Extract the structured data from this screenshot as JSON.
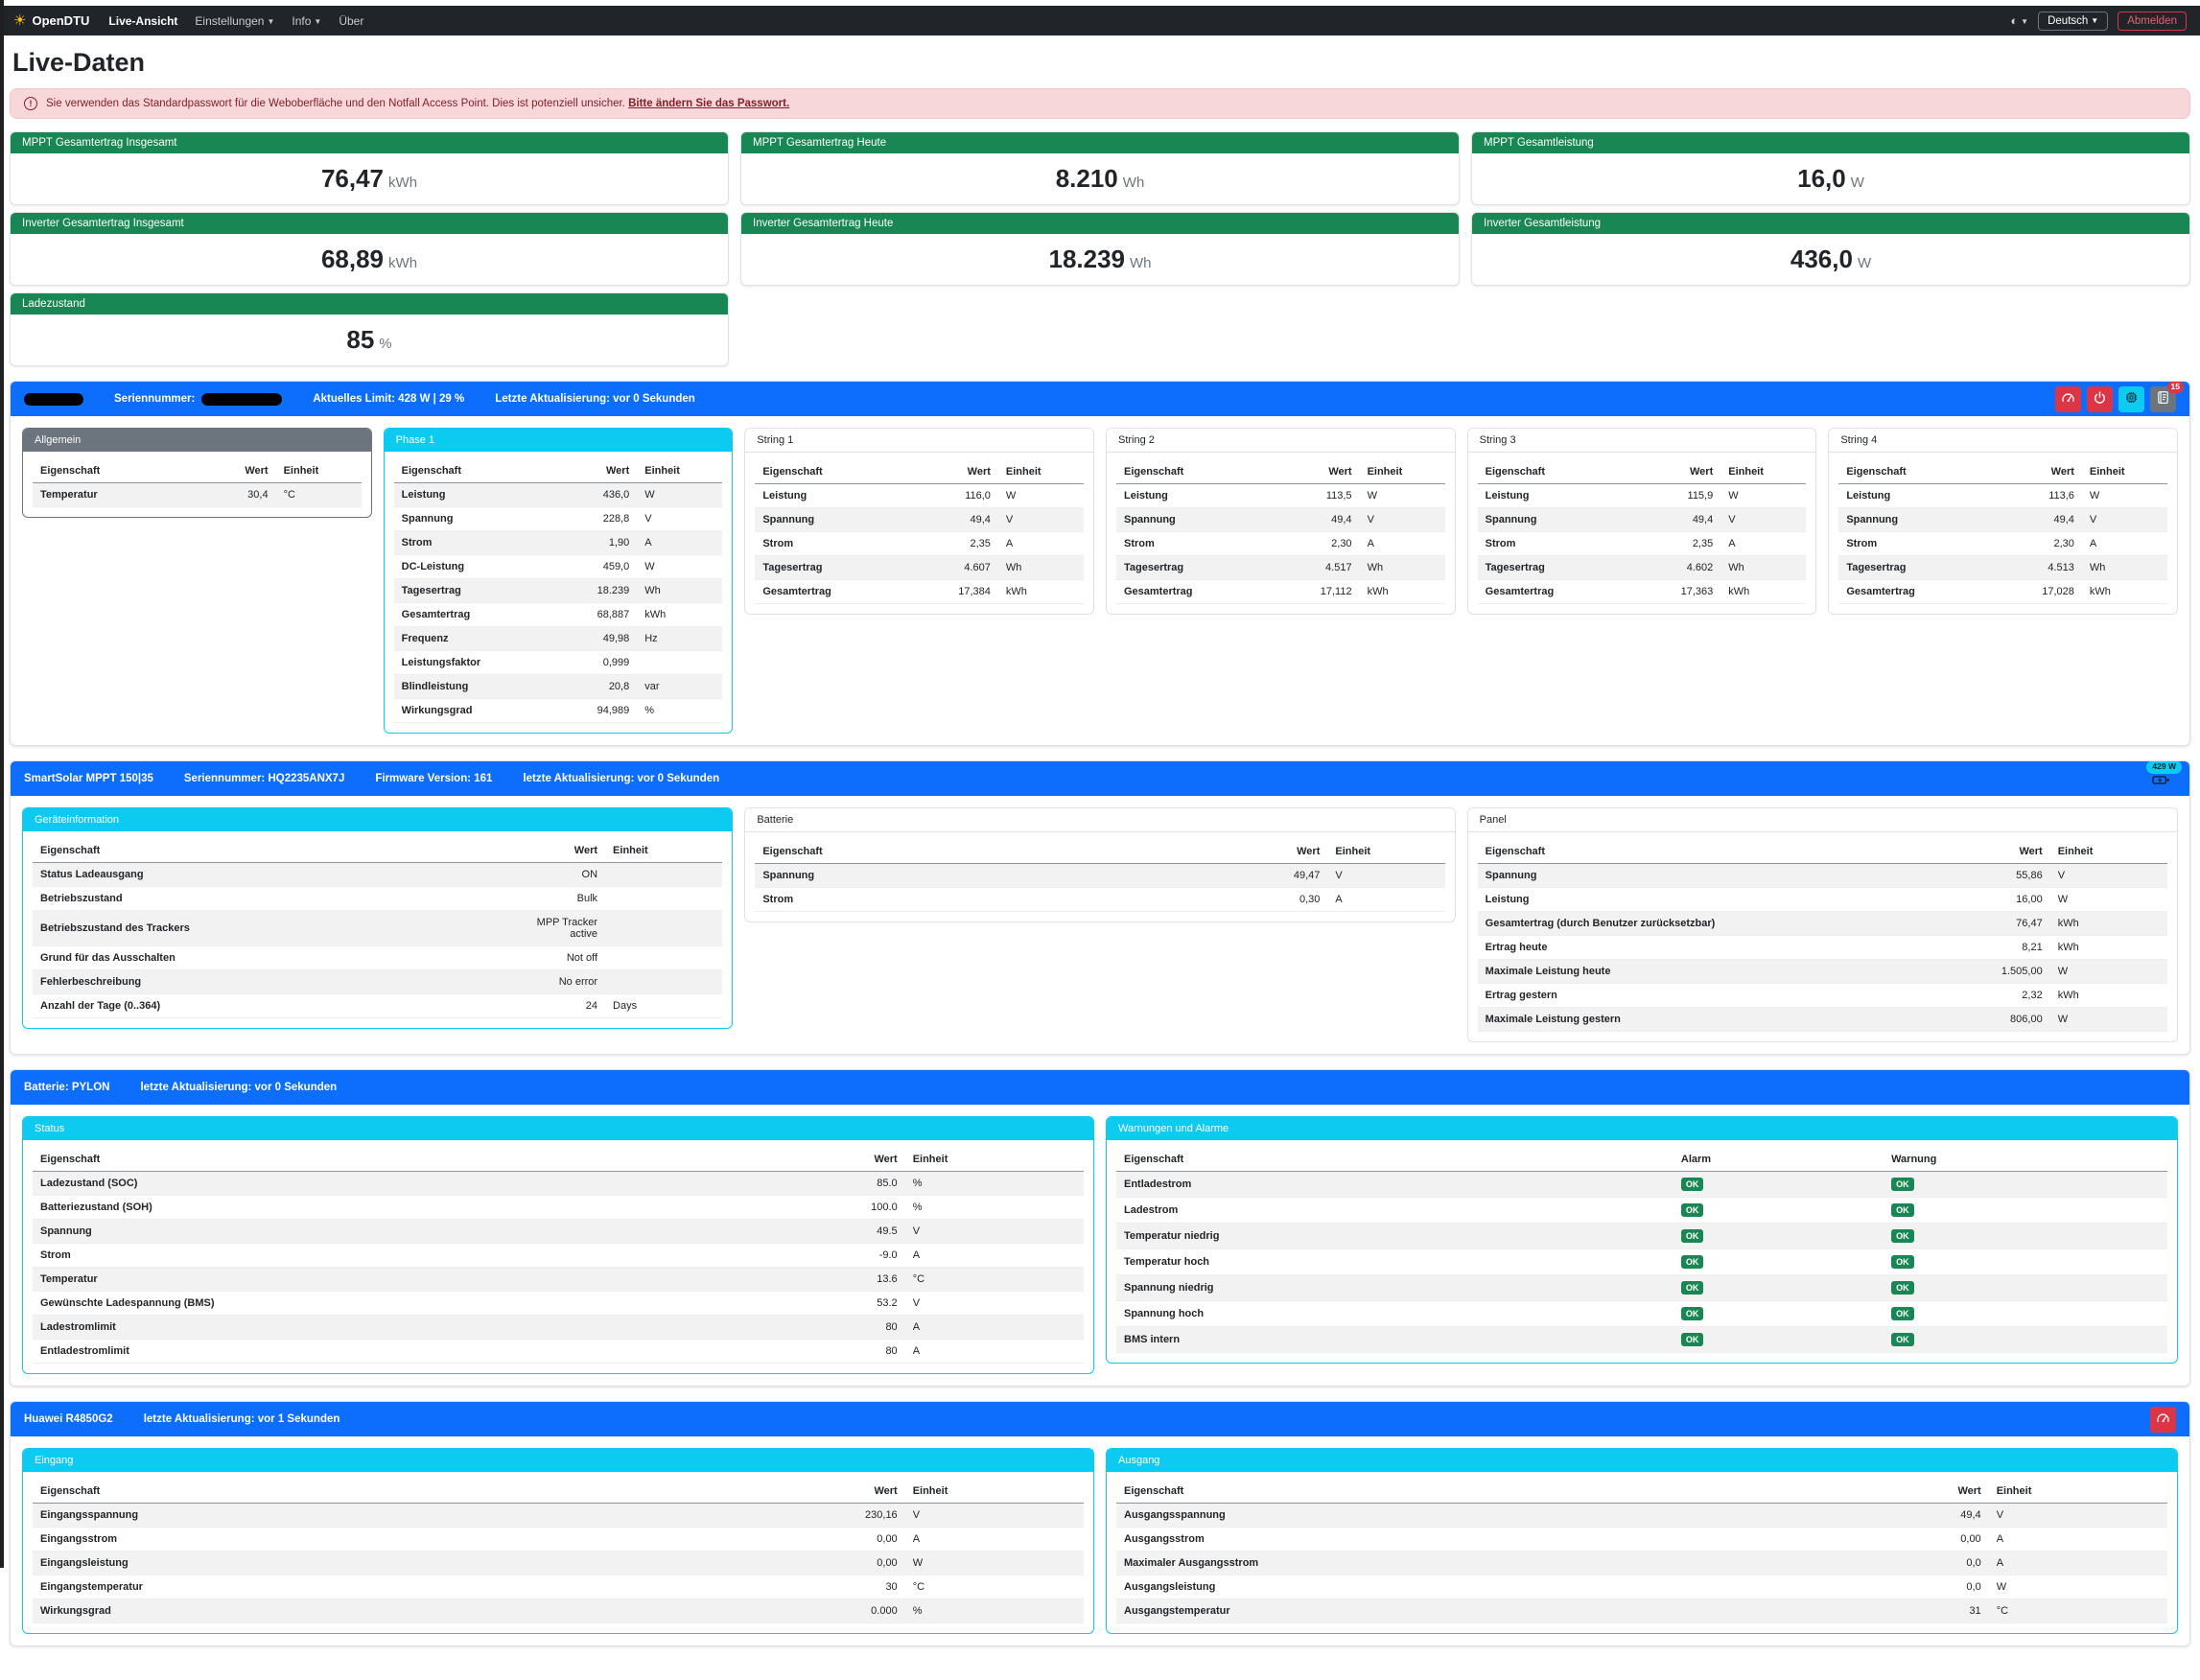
{
  "navbar": {
    "brand": "OpenDTU",
    "items": [
      {
        "label": "Live-Ansicht",
        "active": true,
        "caret": false
      },
      {
        "label": "Einstellungen",
        "active": false,
        "caret": true
      },
      {
        "label": "Info",
        "active": false,
        "caret": true
      },
      {
        "label": "Über",
        "active": false,
        "caret": false
      }
    ],
    "theme_icon": "◐",
    "language": "Deutsch",
    "logout": "Abmelden"
  },
  "page": {
    "title": "Live-Daten"
  },
  "alert": {
    "text": "Sie verwenden das Standardpasswort für die Weboberfläche und den Notfall Access Point. Dies ist potenziell unsicher.",
    "link": "Bitte ändern Sie das Passwort."
  },
  "summary_cards": [
    {
      "title": "MPPT Gesamtertrag Insgesamt",
      "value": "76,47",
      "unit": "kWh"
    },
    {
      "title": "MPPT Gesamtertrag Heute",
      "value": "8.210",
      "unit": "Wh"
    },
    {
      "title": "MPPT Gesamtleistung",
      "value": "16,0",
      "unit": "W"
    },
    {
      "title": "Inverter Gesamtertrag Insgesamt",
      "value": "68,89",
      "unit": "kWh"
    },
    {
      "title": "Inverter Gesamtertrag Heute",
      "value": "18.239",
      "unit": "Wh"
    },
    {
      "title": "Inverter Gesamtleistung",
      "value": "436,0",
      "unit": "W"
    },
    {
      "title": "Ladezustand",
      "value": "85",
      "unit": "%"
    }
  ],
  "sections": [
    {
      "id": "inverter",
      "bar": {
        "redacted_name": true,
        "serial": {
          "label": "Seriennummer:",
          "redacted": true
        },
        "texts": [
          "Aktuelles Limit: 428 W | 29 %",
          "Letzte Aktualisierung: vor 0 Sekunden"
        ],
        "buttons": [
          {
            "icon": "gauge",
            "color": "red"
          },
          {
            "icon": "power",
            "color": "red"
          },
          {
            "icon": "chip",
            "color": "cyan"
          },
          {
            "icon": "journal",
            "color": "gray",
            "badge": "15"
          }
        ]
      },
      "grid": 6,
      "columns": [
        "Eigenschaft",
        "Wert",
        "Einheit"
      ],
      "panels": [
        {
          "title": "Allgemein",
          "style": "secondary",
          "span": 1,
          "stripe": "odd",
          "rows": [
            [
              "Temperatur",
              "30,4",
              "°C"
            ]
          ]
        },
        {
          "title": "Phase 1",
          "style": "info",
          "span": 1,
          "stripe": "odd",
          "rows": [
            [
              "Leistung",
              "436,0",
              "W"
            ],
            [
              "Spannung",
              "228,8",
              "V"
            ],
            [
              "Strom",
              "1,90",
              "A"
            ],
            [
              "DC-Leistung",
              "459,0",
              "W"
            ],
            [
              "Tagesertrag",
              "18.239",
              "Wh"
            ],
            [
              "Gesamtertrag",
              "68,887",
              "kWh"
            ],
            [
              "Frequenz",
              "49,98",
              "Hz"
            ],
            [
              "Leistungsfaktor",
              "0,999",
              ""
            ],
            [
              "Blindleistung",
              "20,8",
              "var"
            ],
            [
              "Wirkungsgrad",
              "94,989",
              "%"
            ]
          ]
        },
        {
          "title": "String 1",
          "style": "plain",
          "span": 1,
          "stripe": "even",
          "rows": [
            [
              "Leistung",
              "116,0",
              "W"
            ],
            [
              "Spannung",
              "49,4",
              "V"
            ],
            [
              "Strom",
              "2,35",
              "A"
            ],
            [
              "Tagesertrag",
              "4.607",
              "Wh"
            ],
            [
              "Gesamtertrag",
              "17,384",
              "kWh"
            ]
          ]
        },
        {
          "title": "String 2",
          "style": "plain",
          "span": 1,
          "stripe": "even",
          "rows": [
            [
              "Leistung",
              "113,5",
              "W"
            ],
            [
              "Spannung",
              "49,4",
              "V"
            ],
            [
              "Strom",
              "2,30",
              "A"
            ],
            [
              "Tagesertrag",
              "4.517",
              "Wh"
            ],
            [
              "Gesamtertrag",
              "17,112",
              "kWh"
            ]
          ]
        },
        {
          "title": "String 3",
          "style": "plain",
          "span": 1,
          "stripe": "even",
          "rows": [
            [
              "Leistung",
              "115,9",
              "W"
            ],
            [
              "Spannung",
              "49,4",
              "V"
            ],
            [
              "Strom",
              "2,35",
              "A"
            ],
            [
              "Tagesertrag",
              "4.602",
              "Wh"
            ],
            [
              "Gesamtertrag",
              "17,363",
              "kWh"
            ]
          ]
        },
        {
          "title": "String 4",
          "style": "plain",
          "span": 1,
          "stripe": "even",
          "rows": [
            [
              "Leistung",
              "113,6",
              "W"
            ],
            [
              "Spannung",
              "49,4",
              "V"
            ],
            [
              "Strom",
              "2,30",
              "A"
            ],
            [
              "Tagesertrag",
              "4.513",
              "Wh"
            ],
            [
              "Gesamtertrag",
              "17,028",
              "kWh"
            ]
          ]
        }
      ]
    },
    {
      "id": "victron",
      "bar": {
        "texts": [
          "SmartSolar MPPT 150|35",
          "Seriennummer: HQ2235ANX7J",
          "Firmware Version: 161",
          "letzte Aktualisierung: vor 0 Sekunden"
        ],
        "charge_indicator": {
          "icon": "battery-charging",
          "badge": "429 W"
        }
      },
      "grid": 6,
      "columns": [
        "Eigenschaft",
        "Wert",
        "Einheit"
      ],
      "panels": [
        {
          "title": "Geräteinformation",
          "style": "info",
          "span": 2,
          "stripe": "odd",
          "rows": [
            [
              "Status Ladeausgang",
              "ON",
              ""
            ],
            [
              "Betriebszustand",
              "Bulk",
              ""
            ],
            [
              "Betriebszustand des Trackers",
              "MPP Tracker active",
              ""
            ],
            [
              "Grund für das Ausschalten",
              "Not off",
              ""
            ],
            [
              "Fehlerbeschreibung",
              "No error",
              ""
            ],
            [
              "Anzahl der Tage (0..364)",
              "24",
              "Days"
            ]
          ]
        },
        {
          "title": "Batterie",
          "style": "plain",
          "span": 2,
          "stripe": "odd",
          "rows": [
            [
              "Spannung",
              "49,47",
              "V"
            ],
            [
              "Strom",
              "0,30",
              "A"
            ]
          ]
        },
        {
          "title": "Panel",
          "style": "plain",
          "span": 2,
          "stripe": "odd",
          "rows": [
            [
              "Spannung",
              "55,86",
              "V"
            ],
            [
              "Leistung",
              "16,00",
              "W"
            ],
            [
              "Gesamtertrag (durch Benutzer zurücksetzbar)",
              "76,47",
              "kWh"
            ],
            [
              "Ertrag heute",
              "8,21",
              "kWh"
            ],
            [
              "Maximale Leistung heute",
              "1.505,00",
              "W"
            ],
            [
              "Ertrag gestern",
              "2,32",
              "kWh"
            ],
            [
              "Maximale Leistung gestern",
              "806,00",
              "W"
            ]
          ]
        }
      ]
    },
    {
      "id": "battery",
      "bar": {
        "texts": [
          "Batterie: PYLON",
          "letzte Aktualisierung: vor 0 Sekunden"
        ]
      },
      "grid": 2,
      "columns": [
        "Eigenschaft",
        "Wert",
        "Einheit"
      ],
      "panels": [
        {
          "title": "Status",
          "style": "info",
          "span": 1,
          "stripe": "odd",
          "rows": [
            [
              "Ladezustand (SOC)",
              "85.0",
              "%"
            ],
            [
              "Batteriezustand (SOH)",
              "100.0",
              "%"
            ],
            [
              "Spannung",
              "49.5",
              "V"
            ],
            [
              "Strom",
              "-9.0",
              "A"
            ],
            [
              "Temperatur",
              "13.6",
              "°C"
            ],
            [
              "Gewünschte Ladespannung (BMS)",
              "53.2",
              "V"
            ],
            [
              "Ladestromlimit",
              "80",
              "A"
            ],
            [
              "Entladestromlimit",
              "80",
              "A"
            ]
          ]
        },
        {
          "title": "Warnungen und Alarme",
          "style": "info",
          "span": 1,
          "stripe": "odd",
          "columns": [
            "Eigenschaft",
            "Alarm",
            "Warnung"
          ],
          "badges": true,
          "ok_label": "OK",
          "rows": [
            [
              "Entladestrom",
              "OK",
              "OK"
            ],
            [
              "Ladestrom",
              "OK",
              "OK"
            ],
            [
              "Temperatur niedrig",
              "OK",
              "OK"
            ],
            [
              "Temperatur hoch",
              "OK",
              "OK"
            ],
            [
              "Spannung niedrig",
              "OK",
              "OK"
            ],
            [
              "Spannung hoch",
              "OK",
              "OK"
            ],
            [
              "BMS intern",
              "OK",
              "OK"
            ]
          ]
        }
      ]
    },
    {
      "id": "charger",
      "bar": {
        "texts": [
          "Huawei R4850G2",
          "letzte Aktualisierung: vor 1 Sekunden"
        ],
        "buttons": [
          {
            "icon": "gauge",
            "color": "red"
          }
        ]
      },
      "grid": 2,
      "columns": [
        "Eigenschaft",
        "Wert",
        "Einheit"
      ],
      "panels": [
        {
          "title": "Eingang",
          "style": "info",
          "span": 1,
          "stripe": "odd",
          "rows": [
            [
              "Eingangsspannung",
              "230,16",
              "V"
            ],
            [
              "Eingangsstrom",
              "0,00",
              "A"
            ],
            [
              "Eingangsleistung",
              "0,00",
              "W"
            ],
            [
              "Eingangstemperatur",
              "30",
              "°C"
            ],
            [
              "Wirkungsgrad",
              "0.000",
              "%"
            ]
          ]
        },
        {
          "title": "Ausgang",
          "style": "info",
          "span": 1,
          "stripe": "odd",
          "rows": [
            [
              "Ausgangsspannung",
              "49,4",
              "V"
            ],
            [
              "Ausgangsstrom",
              "0,00",
              "A"
            ],
            [
              "Maximaler Ausgangsstrom",
              "0,0",
              "A"
            ],
            [
              "Ausgangsleistung",
              "0,0",
              "W"
            ],
            [
              "Ausgangstemperatur",
              "31",
              "°C"
            ]
          ]
        }
      ]
    }
  ],
  "colors": {
    "primary": "#0d6efd",
    "success": "#198754",
    "info": "#0dcaf0",
    "secondary": "#6c757d",
    "danger": "#dc3545",
    "alert_bg": "#f8d7da",
    "alert_text": "#842029"
  }
}
